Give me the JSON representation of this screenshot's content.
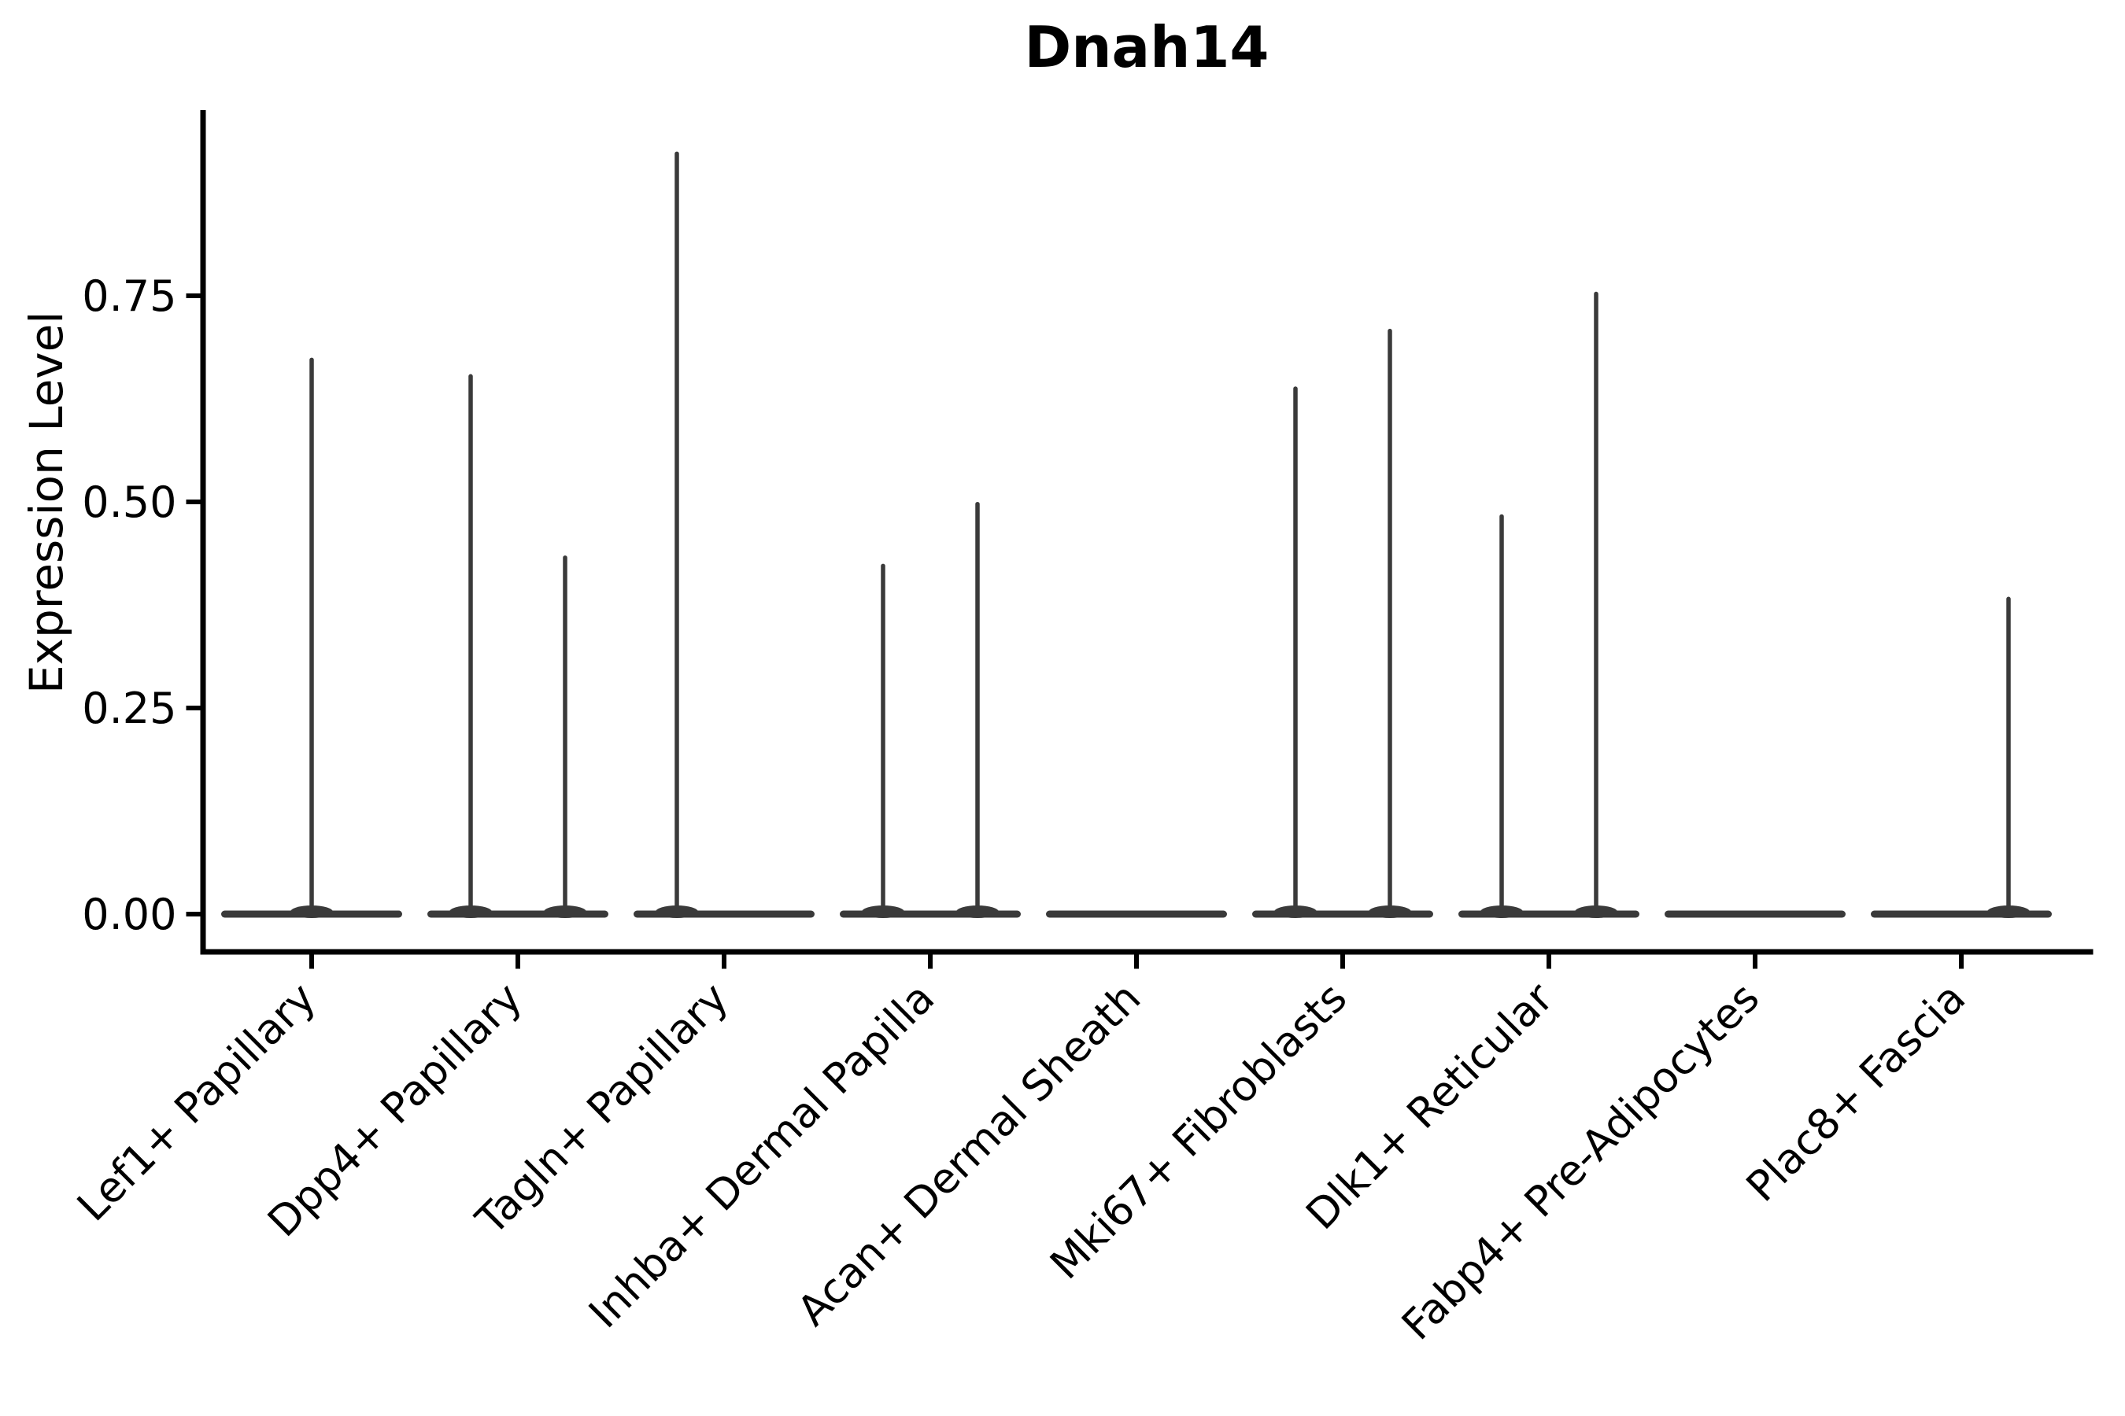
{
  "page": {
    "background": "#ffffff"
  },
  "chart_data": {
    "type": "violin",
    "title": "Dnah14",
    "ylabel": "Expression Level",
    "grid": false,
    "legend_position": "none",
    "ylim": [
      -0.046,
      0.975
    ],
    "baseline_value": 0.0,
    "colors": {
      "violin": "#3a3a3a",
      "spine": "#000000",
      "text": "#000000"
    },
    "yticks": [
      {
        "value": 0.0,
        "label": "0.00"
      },
      {
        "value": 0.25,
        "label": "0.25"
      },
      {
        "value": 0.5,
        "label": "0.50"
      },
      {
        "value": 0.75,
        "label": "0.75"
      }
    ],
    "categories": [
      {
        "label": "Lef1+ Papillary",
        "spikes": [
          {
            "position": "center",
            "value": 0.675
          }
        ]
      },
      {
        "label": "Dpp4+ Papillary",
        "spikes": [
          {
            "position": "left",
            "value": 0.655
          },
          {
            "position": "right",
            "value": 0.435
          }
        ]
      },
      {
        "label": "Tagln+ Papillary",
        "spikes": [
          {
            "position": "left",
            "value": 0.925
          }
        ]
      },
      {
        "label": "Inhba+ Dermal Papilla",
        "spikes": [
          {
            "position": "left",
            "value": 0.425
          },
          {
            "position": "right",
            "value": 0.5
          }
        ]
      },
      {
        "label": "Acan+ Dermal Sheath",
        "spikes": []
      },
      {
        "label": "Mki67+ Fibroblasts",
        "spikes": [
          {
            "position": "left",
            "value": 0.64
          },
          {
            "position": "right",
            "value": 0.71
          }
        ]
      },
      {
        "label": "Dlk1+ Reticular",
        "spikes": [
          {
            "position": "left",
            "value": 0.485
          },
          {
            "position": "right",
            "value": 0.755
          }
        ]
      },
      {
        "label": "Fabp4+ Pre-Adipocytes",
        "spikes": []
      },
      {
        "label": "Plac8+ Fascia",
        "spikes": [
          {
            "position": "right",
            "value": 0.385
          }
        ]
      }
    ]
  }
}
